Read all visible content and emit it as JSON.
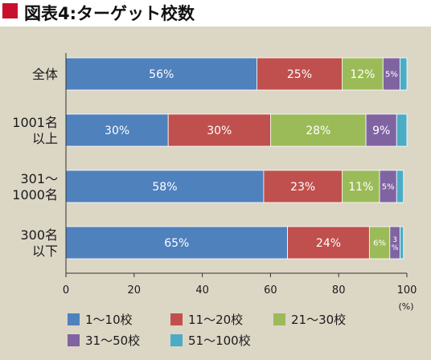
{
  "title": "図表4:ターゲット校数",
  "chart_data": {
    "type": "bar",
    "orientation": "horizontal",
    "stacked": true,
    "title": "図表4:ターゲット校数",
    "xlabel": "(%)",
    "xlim": [
      0,
      100
    ],
    "xticks": [
      "0",
      "20",
      "40",
      "60",
      "80",
      "100"
    ],
    "categories": [
      [
        "全体"
      ],
      [
        "1001名",
        "以上"
      ],
      [
        "301〜",
        "1000名"
      ],
      [
        "300名",
        "以下"
      ]
    ],
    "series": [
      {
        "name": "1〜10校",
        "color": "#4f81bd",
        "values": [
          56,
          30,
          58,
          65
        ],
        "labels": [
          "56%",
          "30%",
          "58%",
          "65%"
        ]
      },
      {
        "name": "11〜20校",
        "color": "#c0504d",
        "values": [
          25,
          30,
          23,
          24
        ],
        "labels": [
          "25%",
          "30%",
          "23%",
          "24%"
        ]
      },
      {
        "name": "21〜30校",
        "color": "#9bbb59",
        "values": [
          12,
          28,
          11,
          6
        ],
        "labels": [
          "12%",
          "28%",
          "11%",
          "6%"
        ]
      },
      {
        "name": "31〜50校",
        "color": "#8064a2",
        "values": [
          5,
          9,
          5,
          3
        ],
        "labels": [
          "5%",
          "9%",
          "5%",
          "3%"
        ]
      },
      {
        "name": "51〜100校",
        "color": "#4bacc6",
        "values": [
          2,
          3,
          2,
          1
        ],
        "labels": [
          "",
          "",
          "",
          ""
        ]
      }
    ],
    "legend_position": "bottom",
    "grid": false
  }
}
